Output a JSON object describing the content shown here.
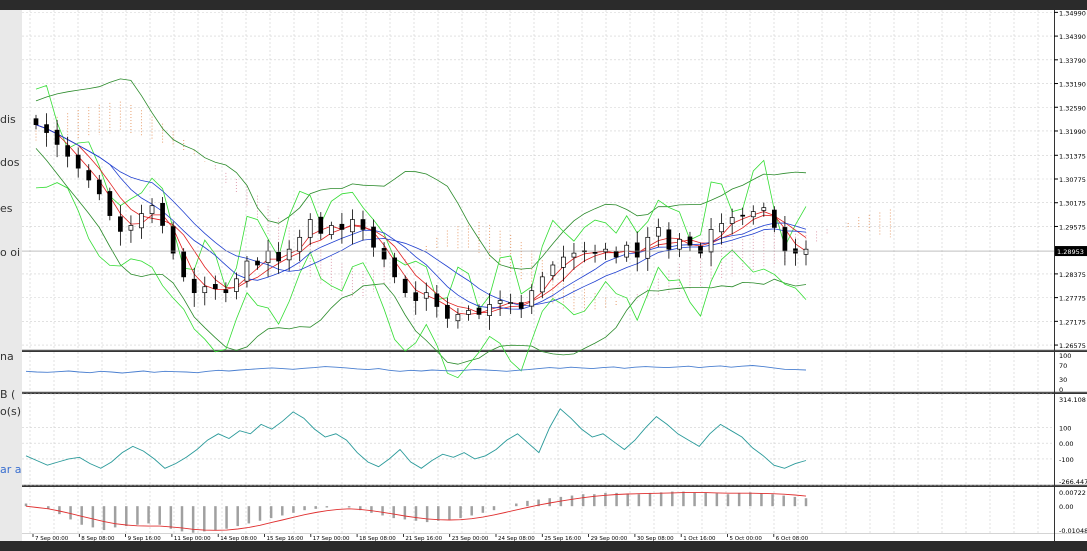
{
  "left_overlay": [
    "dis",
    "dos",
    "es",
    "o oi",
    "na",
    "B (",
    "o(s)",
    "ar a"
  ],
  "chart_data": {
    "type": "candlestick",
    "symbol_price_label": "1.28953",
    "main_panel": {
      "y_ticks": [
        "1.34990",
        "1.34390",
        "1.33790",
        "1.33190",
        "1.32590",
        "1.31990",
        "1.31375",
        "1.30775",
        "1.30175",
        "1.29575",
        "1.28375",
        "1.27775",
        "1.27175",
        "1.26575"
      ],
      "ylim": [
        1.2645,
        1.3505
      ],
      "close_path": [
        1.3215,
        1.3195,
        1.3165,
        1.3135,
        1.3105,
        1.3075,
        1.304,
        1.2985,
        1.2945,
        1.296,
        1.299,
        1.301,
        1.296,
        1.289,
        1.283,
        1.279,
        1.2805,
        1.28,
        1.279,
        1.2825,
        1.287,
        1.286,
        1.2895,
        1.287,
        1.29,
        1.293,
        1.2975,
        1.294,
        1.296,
        1.295,
        1.2975,
        1.295,
        1.2905,
        1.2875,
        1.283,
        1.279,
        1.277,
        1.279,
        1.2755,
        1.2725,
        1.2735,
        1.2745,
        1.2735,
        1.276,
        1.277,
        1.2765,
        1.275,
        1.2795,
        1.283,
        1.286,
        1.288,
        1.289,
        1.2895,
        1.289,
        1.29,
        1.288,
        1.291,
        1.288,
        1.293,
        1.2955,
        1.29,
        1.2925,
        1.291,
        1.289,
        1.295,
        1.2965,
        1.298,
        1.2985,
        1.2995,
        1.3005,
        1.2955,
        1.2895,
        1.289,
        1.29
      ],
      "current_price": 1.28953
    },
    "rsi_panel": {
      "y_ticks": [
        "100",
        "70",
        "30",
        "0"
      ],
      "ylim": [
        0,
        100
      ],
      "values": [
        52,
        50,
        49,
        51,
        53,
        50,
        48,
        52,
        50,
        47,
        50,
        53,
        49,
        52,
        51,
        50,
        48,
        52,
        55,
        53,
        56,
        58,
        60,
        62,
        60,
        58,
        61,
        63,
        66,
        64,
        62,
        59,
        57,
        60,
        55,
        52,
        55,
        53,
        56,
        54,
        53,
        55,
        57,
        56,
        54,
        52,
        55,
        57,
        60,
        63,
        61,
        64,
        62,
        60,
        63,
        65,
        61,
        64,
        66,
        64,
        63,
        65,
        67,
        63,
        66,
        68,
        64,
        67,
        69,
        66,
        62,
        58,
        57,
        56
      ]
    },
    "cci_panel": {
      "y_ticks": [
        "314.108",
        "100",
        "0.00",
        "-100",
        "-266.447"
      ],
      "ylim": [
        -266.447,
        314.108
      ],
      "values": [
        -80,
        -110,
        -140,
        -120,
        -100,
        -90,
        -130,
        -160,
        -120,
        -60,
        -20,
        -50,
        -100,
        -160,
        -130,
        -90,
        -40,
        20,
        60,
        30,
        80,
        60,
        120,
        90,
        140,
        200,
        160,
        90,
        40,
        60,
        20,
        -60,
        -120,
        -150,
        -100,
        -40,
        -120,
        -160,
        -110,
        -70,
        -90,
        -60,
        -100,
        -80,
        -40,
        20,
        60,
        0,
        -60,
        100,
        220,
        160,
        90,
        40,
        60,
        10,
        -40,
        20,
        100,
        170,
        120,
        60,
        20,
        -20,
        60,
        120,
        80,
        40,
        -30,
        -80,
        -140,
        -160,
        -130,
        -110
      ]
    },
    "macd_panel": {
      "y_ticks": [
        "0.00722",
        "0.00",
        "-0.01048"
      ],
      "ylim": [
        -0.01048,
        0.00722
      ],
      "histogram": [
        0.001,
        0.0,
        -0.001,
        -0.003,
        -0.005,
        -0.007,
        -0.008,
        -0.009,
        -0.008,
        -0.0075,
        -0.007,
        -0.0065,
        -0.007,
        -0.0085,
        -0.0095,
        -0.01,
        -0.0095,
        -0.009,
        -0.0085,
        -0.0075,
        -0.0065,
        -0.0055,
        -0.0045,
        -0.0035,
        -0.0025,
        -0.0015,
        -0.001,
        -0.0005,
        0.0,
        -0.0005,
        -0.0015,
        -0.0025,
        -0.0035,
        -0.0045,
        -0.005,
        -0.0055,
        -0.006,
        -0.0055,
        -0.005,
        -0.0045,
        -0.0035,
        -0.0025,
        -0.0015,
        0.0,
        0.001,
        0.002,
        0.0025,
        0.003,
        0.0035,
        0.004,
        0.0045,
        0.0045,
        0.005,
        0.005,
        0.0048,
        0.0045,
        0.005,
        0.0052,
        0.0055,
        0.0055,
        0.0052,
        0.005,
        0.0048,
        0.0045,
        0.005,
        0.0052,
        0.0048,
        0.0045,
        0.004,
        0.0035,
        0.003
      ],
      "signal": [
        0.0,
        -0.0005,
        -0.001,
        -0.0018,
        -0.0028,
        -0.0038,
        -0.0048,
        -0.0058,
        -0.0066,
        -0.0071,
        -0.0074,
        -0.0075,
        -0.0075,
        -0.0078,
        -0.0082,
        -0.0087,
        -0.009,
        -0.0091,
        -0.009,
        -0.0086,
        -0.008,
        -0.0072,
        -0.0062,
        -0.0052,
        -0.0042,
        -0.0032,
        -0.0024,
        -0.0017,
        -0.0012,
        -0.001,
        -0.0012,
        -0.0017,
        -0.0023,
        -0.003,
        -0.0037,
        -0.0043,
        -0.0048,
        -0.0051,
        -0.0052,
        -0.0051,
        -0.0047,
        -0.0041,
        -0.0033,
        -0.0024,
        -0.0014,
        -0.0005,
        0.0004,
        0.0012,
        0.0019,
        0.0026,
        0.0032,
        0.0037,
        0.0041,
        0.0044,
        0.0046,
        0.0047,
        0.0048,
        0.0049,
        0.005,
        0.0051,
        0.0051,
        0.0051,
        0.005,
        0.0049,
        0.0049,
        0.0049,
        0.0048,
        0.0047,
        0.0045,
        0.0042,
        0.0038
      ]
    },
    "x_ticks": [
      "7 Sep 00:00",
      "8 Sep 08:00",
      "9 Sep 16:00",
      "11 Sep 00:00",
      "14 Sep 08:00",
      "15 Sep 16:00",
      "17 Sep 00:00",
      "18 Sep 08:00",
      "21 Sep 16:00",
      "23 Sep 00:00",
      "24 Sep 08:00",
      "25 Sep 16:00",
      "29 Sep 00:00",
      "30 Sep 08:00",
      "1 Oct 16:00",
      "5 Oct 00:00",
      "6 Oct 08:00"
    ],
    "colors": {
      "background": "#ffffff",
      "grid": "#cfcfcf",
      "candle": "#000000",
      "ma_red": "#e02020",
      "ma_blue": "#2040d0",
      "bollinger": "#2a8a2a",
      "envelope": "#33dd33",
      "cloud_a": "#e8a070",
      "cloud_b": "#e0a0b0",
      "rsi": "#4a7fd0",
      "cci": "#2a9a9a",
      "macd_hist": "#a0a0a0",
      "macd_signal": "#e03030"
    }
  }
}
